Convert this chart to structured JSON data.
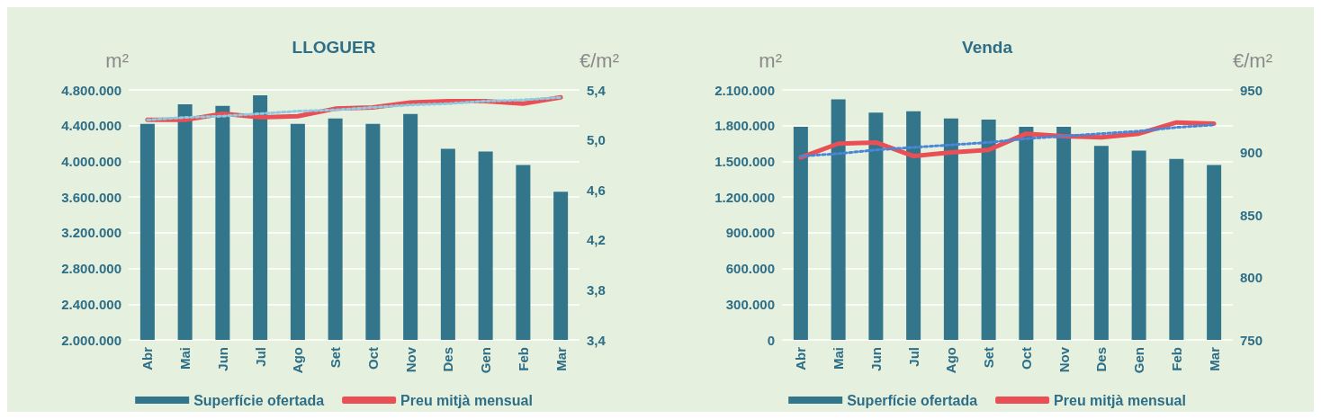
{
  "chart_data": [
    {
      "type": "bar",
      "title": "LLOGUER",
      "ylabel": "m²",
      "y2label": "€/m²",
      "categories": [
        "Abr",
        "Mai",
        "Jun",
        "Jul",
        "Ago",
        "Set",
        "Oct",
        "Nov",
        "Des",
        "Gen",
        "Feb",
        "Mar"
      ],
      "series": [
        {
          "name": "Superfície ofertada",
          "color": "#33758b",
          "values": [
            4420000,
            4640000,
            4620000,
            4740000,
            4420000,
            4480000,
            4420000,
            4530000,
            4140000,
            4110000,
            3960000,
            3660000
          ]
        },
        {
          "name": "Preu mitjà mensual",
          "type": "line",
          "axis": "y2",
          "color": "#e94f55",
          "line_style": "solid",
          "values": [
            5.16,
            5.16,
            5.21,
            5.18,
            5.19,
            5.25,
            5.26,
            5.3,
            5.31,
            5.31,
            5.29,
            5.34
          ]
        },
        {
          "type": "line",
          "axis": "y2",
          "color": "#8ecae0",
          "line_style": "dotted",
          "values": [
            5.16,
            5.18,
            5.19,
            5.21,
            5.23,
            5.24,
            5.26,
            5.28,
            5.29,
            5.31,
            5.32,
            5.34
          ]
        }
      ],
      "ylim": [
        2000000,
        4800000
      ],
      "yticks": [
        {
          "value": 2000000,
          "label": "2.000.000"
        },
        {
          "value": 2400000,
          "label": "2.400.000"
        },
        {
          "value": 2800000,
          "label": "2.800.000"
        },
        {
          "value": 3200000,
          "label": "3.200.000"
        },
        {
          "value": 3600000,
          "label": "3.600.000"
        },
        {
          "value": 4000000,
          "label": "4.000.000"
        },
        {
          "value": 4400000,
          "label": "4.400.000"
        },
        {
          "value": 4800000,
          "label": "4.800.000"
        }
      ],
      "y2lim": [
        3.4,
        5.4
      ],
      "y2ticks": [
        {
          "value": 3.4,
          "label": "3,4"
        },
        {
          "value": 3.8,
          "label": "3,8"
        },
        {
          "value": 4.2,
          "label": "4,2"
        },
        {
          "value": 4.6,
          "label": "4,6"
        },
        {
          "value": 5.0,
          "label": "5,0"
        },
        {
          "value": 5.4,
          "label": "5,4"
        }
      ],
      "grid": "y",
      "legend": "bottom",
      "marker": "none"
    },
    {
      "type": "bar",
      "title": "Venda",
      "ylabel": "m²",
      "y2label": "€/m²",
      "categories": [
        "Abr",
        "Mai",
        "Jun",
        "Jul",
        "Ago",
        "Set",
        "Oct",
        "Nov",
        "Des",
        "Gen",
        "Feb",
        "Mar"
      ],
      "series": [
        {
          "name": "Superfície ofertada",
          "color": "#33758b",
          "values": [
            1790000,
            2020000,
            1910000,
            1920000,
            1860000,
            1850000,
            1790000,
            1790000,
            1630000,
            1590000,
            1520000,
            1470000
          ]
        },
        {
          "name": "Preu mitjà mensual",
          "type": "line",
          "axis": "y2",
          "color": "#e94f55",
          "line_style": "solid",
          "values": [
            896,
            907,
            908,
            897,
            900,
            902,
            915,
            913,
            912,
            915,
            924,
            923
          ]
        },
        {
          "type": "line",
          "axis": "y2",
          "color": "#4a86d8",
          "line_style": "dotted",
          "values": [
            897,
            899,
            902,
            904,
            906,
            908,
            911,
            913,
            915,
            917,
            920,
            922
          ]
        }
      ],
      "ylim": [
        0,
        2100000
      ],
      "yticks": [
        0,
        {
          "value": 300000,
          "label": "300.000"
        },
        {
          "value": 600000,
          "label": "600.000"
        },
        {
          "value": 900000,
          "label": "900.000"
        },
        {
          "value": 1200000,
          "label": "1.200.000"
        },
        {
          "value": 1500000,
          "label": "1.500.000"
        },
        {
          "value": 1800000,
          "label": "1.800.000"
        },
        {
          "value": 2100000,
          "label": "2.100.000"
        }
      ],
      "y2lim": [
        750,
        950
      ],
      "y2ticks": [
        750,
        800,
        850,
        900,
        950
      ],
      "grid": "y",
      "legend": "bottom",
      "marker": "none"
    }
  ]
}
